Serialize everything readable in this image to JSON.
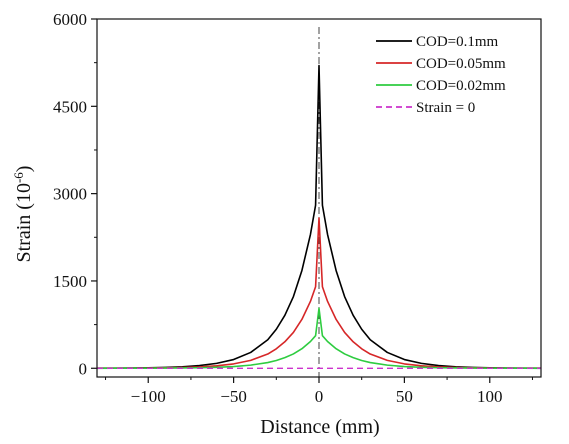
{
  "chart_data": {
    "type": "line",
    "title": "",
    "xlabel": "Distance (mm)",
    "ylabel_base": "Strain (10",
    "ylabel_exp": "-6",
    "ylabel_close": ")",
    "xlim": [
      -130,
      130
    ],
    "ylim": [
      -150,
      6000
    ],
    "xticks": [
      -100,
      -50,
      0,
      50,
      100
    ],
    "yticks": [
      0,
      1500,
      3000,
      4500,
      6000
    ],
    "xtick_labels": [
      "−100",
      "−50",
      "0",
      "50",
      "100"
    ],
    "ytick_labels": [
      "0",
      "1500",
      "3000",
      "4500",
      "6000"
    ],
    "legend_position": "top-right",
    "center_line_x": 0,
    "series": [
      {
        "name": "COD=0.1mm",
        "color": "#000000",
        "style": "solid",
        "x": [
          -130,
          -120,
          -110,
          -100,
          -90,
          -80,
          -70,
          -60,
          -50,
          -40,
          -30,
          -25,
          -20,
          -15,
          -10,
          -5,
          -2,
          0,
          2,
          5,
          10,
          15,
          20,
          25,
          30,
          40,
          50,
          60,
          70,
          80,
          90,
          100,
          110,
          120,
          130
        ],
        "y": [
          1,
          2,
          4,
          8,
          14,
          25,
          46,
          84,
          150,
          272,
          490,
          670,
          910,
          1230,
          1680,
          2300,
          2800,
          5200,
          2800,
          2300,
          1680,
          1230,
          910,
          670,
          490,
          272,
          150,
          84,
          46,
          25,
          14,
          8,
          4,
          2,
          1
        ]
      },
      {
        "name": "COD=0.05mm",
        "color": "#d62728",
        "style": "solid",
        "x": [
          -130,
          -120,
          -110,
          -100,
          -90,
          -80,
          -70,
          -60,
          -50,
          -40,
          -30,
          -25,
          -20,
          -15,
          -10,
          -5,
          -2,
          0,
          2,
          5,
          10,
          15,
          20,
          25,
          30,
          40,
          50,
          60,
          70,
          80,
          90,
          100,
          110,
          120,
          130
        ],
        "y": [
          1,
          1,
          2,
          4,
          7,
          12,
          23,
          42,
          75,
          136,
          245,
          335,
          455,
          615,
          840,
          1150,
          1400,
          2580,
          1400,
          1150,
          840,
          615,
          455,
          335,
          245,
          136,
          75,
          42,
          23,
          12,
          7,
          4,
          2,
          1,
          1
        ]
      },
      {
        "name": "COD=0.02mm",
        "color": "#2ecc40",
        "style": "solid",
        "x": [
          -130,
          -120,
          -110,
          -100,
          -90,
          -80,
          -70,
          -60,
          -50,
          -40,
          -30,
          -25,
          -20,
          -15,
          -10,
          -5,
          -2,
          0,
          2,
          5,
          10,
          15,
          20,
          25,
          30,
          40,
          50,
          60,
          70,
          80,
          90,
          100,
          110,
          120,
          130
        ],
        "y": [
          0,
          1,
          1,
          2,
          3,
          5,
          9,
          17,
          30,
          54,
          98,
          134,
          182,
          246,
          336,
          460,
          560,
          1030,
          560,
          460,
          336,
          246,
          182,
          134,
          98,
          54,
          30,
          17,
          9,
          5,
          3,
          2,
          1,
          1,
          0
        ]
      },
      {
        "name": "Strain = 0",
        "color": "#cc33cc",
        "style": "dashed",
        "x": [
          -130,
          130
        ],
        "y": [
          0,
          0
        ]
      }
    ]
  }
}
